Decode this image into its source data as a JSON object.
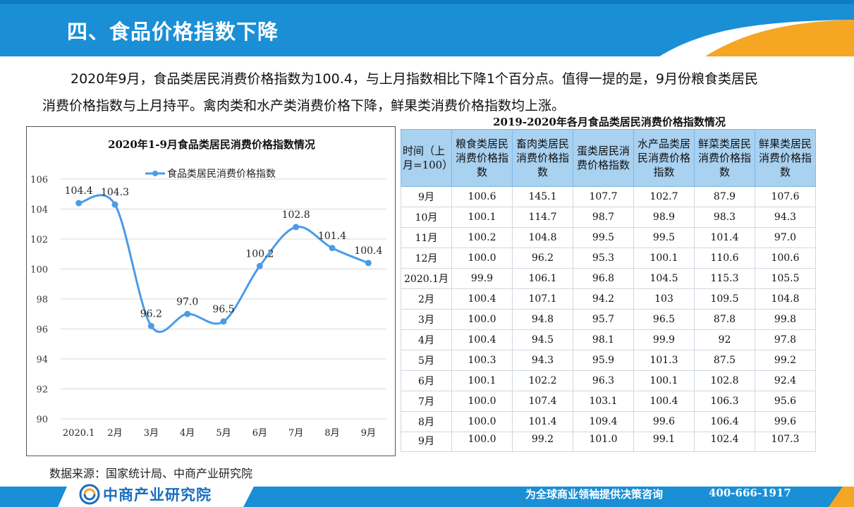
{
  "header": {
    "title": "四、食品价格指数下降"
  },
  "paragraph": {
    "line1": "2020年9月，食品类居民消费价格指数为100.4，与上月指数相比下降1个百分点。值得一提的是，9月份粮食类居民",
    "line2": "消费价格指数与上月持平。禽肉类和水产类消费价格下降，鲜果类消费价格指数均上涨。"
  },
  "chart_data": {
    "type": "line",
    "title": "2020年1-9月食品类居民消费价格指数情况",
    "categories": [
      "2020.1",
      "2月",
      "3月",
      "4月",
      "5月",
      "6月",
      "7月",
      "8月",
      "9月"
    ],
    "series": [
      {
        "name": "食品类居民消费价格指数",
        "values": [
          104.4,
          104.3,
          96.2,
          97.0,
          96.5,
          100.2,
          102.8,
          101.4,
          100.4
        ]
      }
    ],
    "data_labels": [
      "104.4",
      "104.3",
      "96.2",
      "97.0",
      "96.5",
      "100.2",
      "102.8",
      "101.4",
      "100.4"
    ],
    "ylim": [
      90,
      106
    ],
    "yticks": [
      90,
      92,
      94,
      96,
      98,
      100,
      102,
      104,
      106
    ],
    "grid": true,
    "legend": "top",
    "color": "#4a9be8"
  },
  "table": {
    "caption": "2019-2020年各月食品类居民消费价格指数情况",
    "headers": [
      "时间（上月=100）",
      "粮食类居民消费价格指数",
      "畜肉类居民消费价格指数",
      "蛋类居民消费价格指数",
      "水产品类居民消费价格指数",
      "鲜菜类居民消费价格指数",
      "鲜果类居民消费价格指数"
    ],
    "rows": [
      [
        "9月",
        "100.6",
        "145.1",
        "107.7",
        "102.7",
        "87.9",
        "107.6"
      ],
      [
        "10月",
        "100.1",
        "114.7",
        "98.7",
        "98.9",
        "98.3",
        "94.3"
      ],
      [
        "11月",
        "100.2",
        "104.8",
        "99.5",
        "99.5",
        "101.4",
        "97.0"
      ],
      [
        "12月",
        "100.0",
        "96.2",
        "95.3",
        "100.1",
        "110.6",
        "100.6"
      ],
      [
        "2020.1月",
        "99.9",
        "106.1",
        "96.8",
        "104.5",
        "115.3",
        "105.5"
      ],
      [
        "2月",
        "100.4",
        "107.1",
        "94.2",
        "103",
        "109.5",
        "104.8"
      ],
      [
        "3月",
        "100.0",
        "94.8",
        "95.7",
        "96.5",
        "87.8",
        "99.8"
      ],
      [
        "4月",
        "100.4",
        "94.5",
        "98.1",
        "99.9",
        "92",
        "97.8"
      ],
      [
        "5月",
        "100.3",
        "94.3",
        "95.9",
        "101.3",
        "87.5",
        "99.2"
      ],
      [
        "6月",
        "100.1",
        "102.2",
        "96.3",
        "100.1",
        "102.8",
        "92.4"
      ],
      [
        "7月",
        "100.0",
        "107.4",
        "103.1",
        "100.4",
        "106.3",
        "95.6"
      ],
      [
        "8月",
        "100.0",
        "101.4",
        "109.4",
        "99.6",
        "106.4",
        "99.6"
      ],
      [
        "9月",
        "100.0",
        "99.2",
        "101.0",
        "99.1",
        "102.4",
        "107.3"
      ]
    ]
  },
  "source": "数据来源：国家统计局、中商产业研究院",
  "footer": {
    "logo_text": "中商产业研究院",
    "slogan": "为全球商业领袖提供决策咨询",
    "phone": "400-666-1917"
  },
  "colors": {
    "header_blue": "#1a8fd6",
    "accent_orange": "#f5a623",
    "line_blue": "#4a9be8",
    "table_header": "#a9d1f0"
  }
}
